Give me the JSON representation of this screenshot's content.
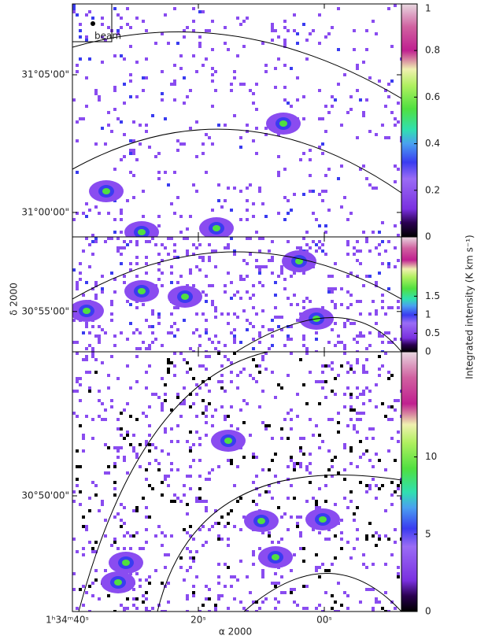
{
  "x_axis": {
    "label": "α 2000",
    "xlim": [
      40,
      -12.25
    ],
    "xticks": [
      {
        "value": 40,
        "label": "1ʰ34ᵐ40ˢ"
      },
      {
        "value": 20,
        "label": "20ˢ"
      },
      {
        "value": 0,
        "label": "00ˢ"
      }
    ]
  },
  "y_axis_label": "δ 2000",
  "colorbar_label": "Integrated intensity (K km s⁻¹)",
  "beam_label": "beam",
  "chart_data": [
    {
      "type": "map",
      "ylim": [
        31.1262,
        30.9852
      ],
      "yticks": [
        {
          "value": 31.08333,
          "label": "31°05'00\""
        },
        {
          "value": 31.0,
          "label": "31°00'00\""
        }
      ],
      "clim": [
        0,
        1
      ],
      "cticks": [
        0,
        0.2,
        0.4,
        0.6,
        0.8,
        1
      ]
    },
    {
      "type": "map",
      "ylim": [
        30.9618,
        30.8923
      ],
      "yticks": [
        {
          "value": 30.91667,
          "label": "30°55'00\""
        }
      ],
      "clim": [
        0,
        3.1
      ],
      "cticks": [
        0,
        0.5,
        1,
        1.5
      ]
    },
    {
      "type": "map",
      "ylim": [
        30.9205,
        30.7633
      ],
      "yticks": [
        {
          "value": 30.83333,
          "label": "30°50'00\""
        }
      ],
      "clim": [
        0,
        16.8
      ],
      "cticks": [
        0,
        5,
        10
      ]
    }
  ]
}
